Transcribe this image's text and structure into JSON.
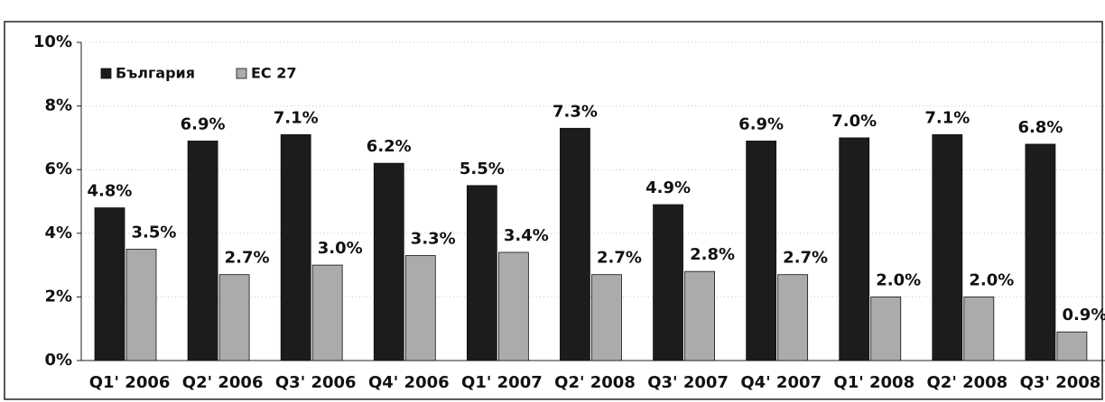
{
  "chart_data": {
    "type": "bar",
    "categories": [
      "Q1' 2006",
      "Q2' 2006",
      "Q3' 2006",
      "Q4' 2006",
      "Q1' 2007",
      "Q2' 2008",
      "Q3' 2007",
      "Q4' 2007",
      "Q1' 2008",
      "Q2' 2008",
      "Q3' 2008"
    ],
    "series": [
      {
        "name": "България",
        "color": "#1c1c1c",
        "values": [
          4.8,
          6.9,
          7.1,
          6.2,
          5.5,
          7.3,
          4.9,
          6.9,
          7.0,
          7.1,
          6.8
        ],
        "value_labels": [
          "4.8%",
          "6.9%",
          "7.1%",
          "6.2%",
          "5.5%",
          "7.3%",
          "4.9%",
          "6.9%",
          "7.0%",
          "7.1%",
          "6.8%"
        ]
      },
      {
        "name": "ЕС 27",
        "color": "#ababab",
        "values": [
          3.5,
          2.7,
          3.0,
          3.3,
          3.4,
          2.7,
          2.8,
          2.7,
          2.0,
          2.0,
          0.9
        ],
        "value_labels": [
          "3.5%",
          "2.7%",
          "3.0%",
          "3.3%",
          "3.4%",
          "2.7%",
          "2.8%",
          "2.7%",
          "2.0%",
          "2.0%",
          "0.9%"
        ]
      }
    ],
    "ylim": [
      0,
      10
    ],
    "yticks": [
      {
        "value": 0,
        "label": "0%"
      },
      {
        "value": 2,
        "label": "2%"
      },
      {
        "value": 4,
        "label": "4%"
      },
      {
        "value": 6,
        "label": "6%"
      },
      {
        "value": 8,
        "label": "8%"
      },
      {
        "value": 10,
        "label": "10%"
      }
    ],
    "grid": true,
    "legend": "top-left"
  }
}
